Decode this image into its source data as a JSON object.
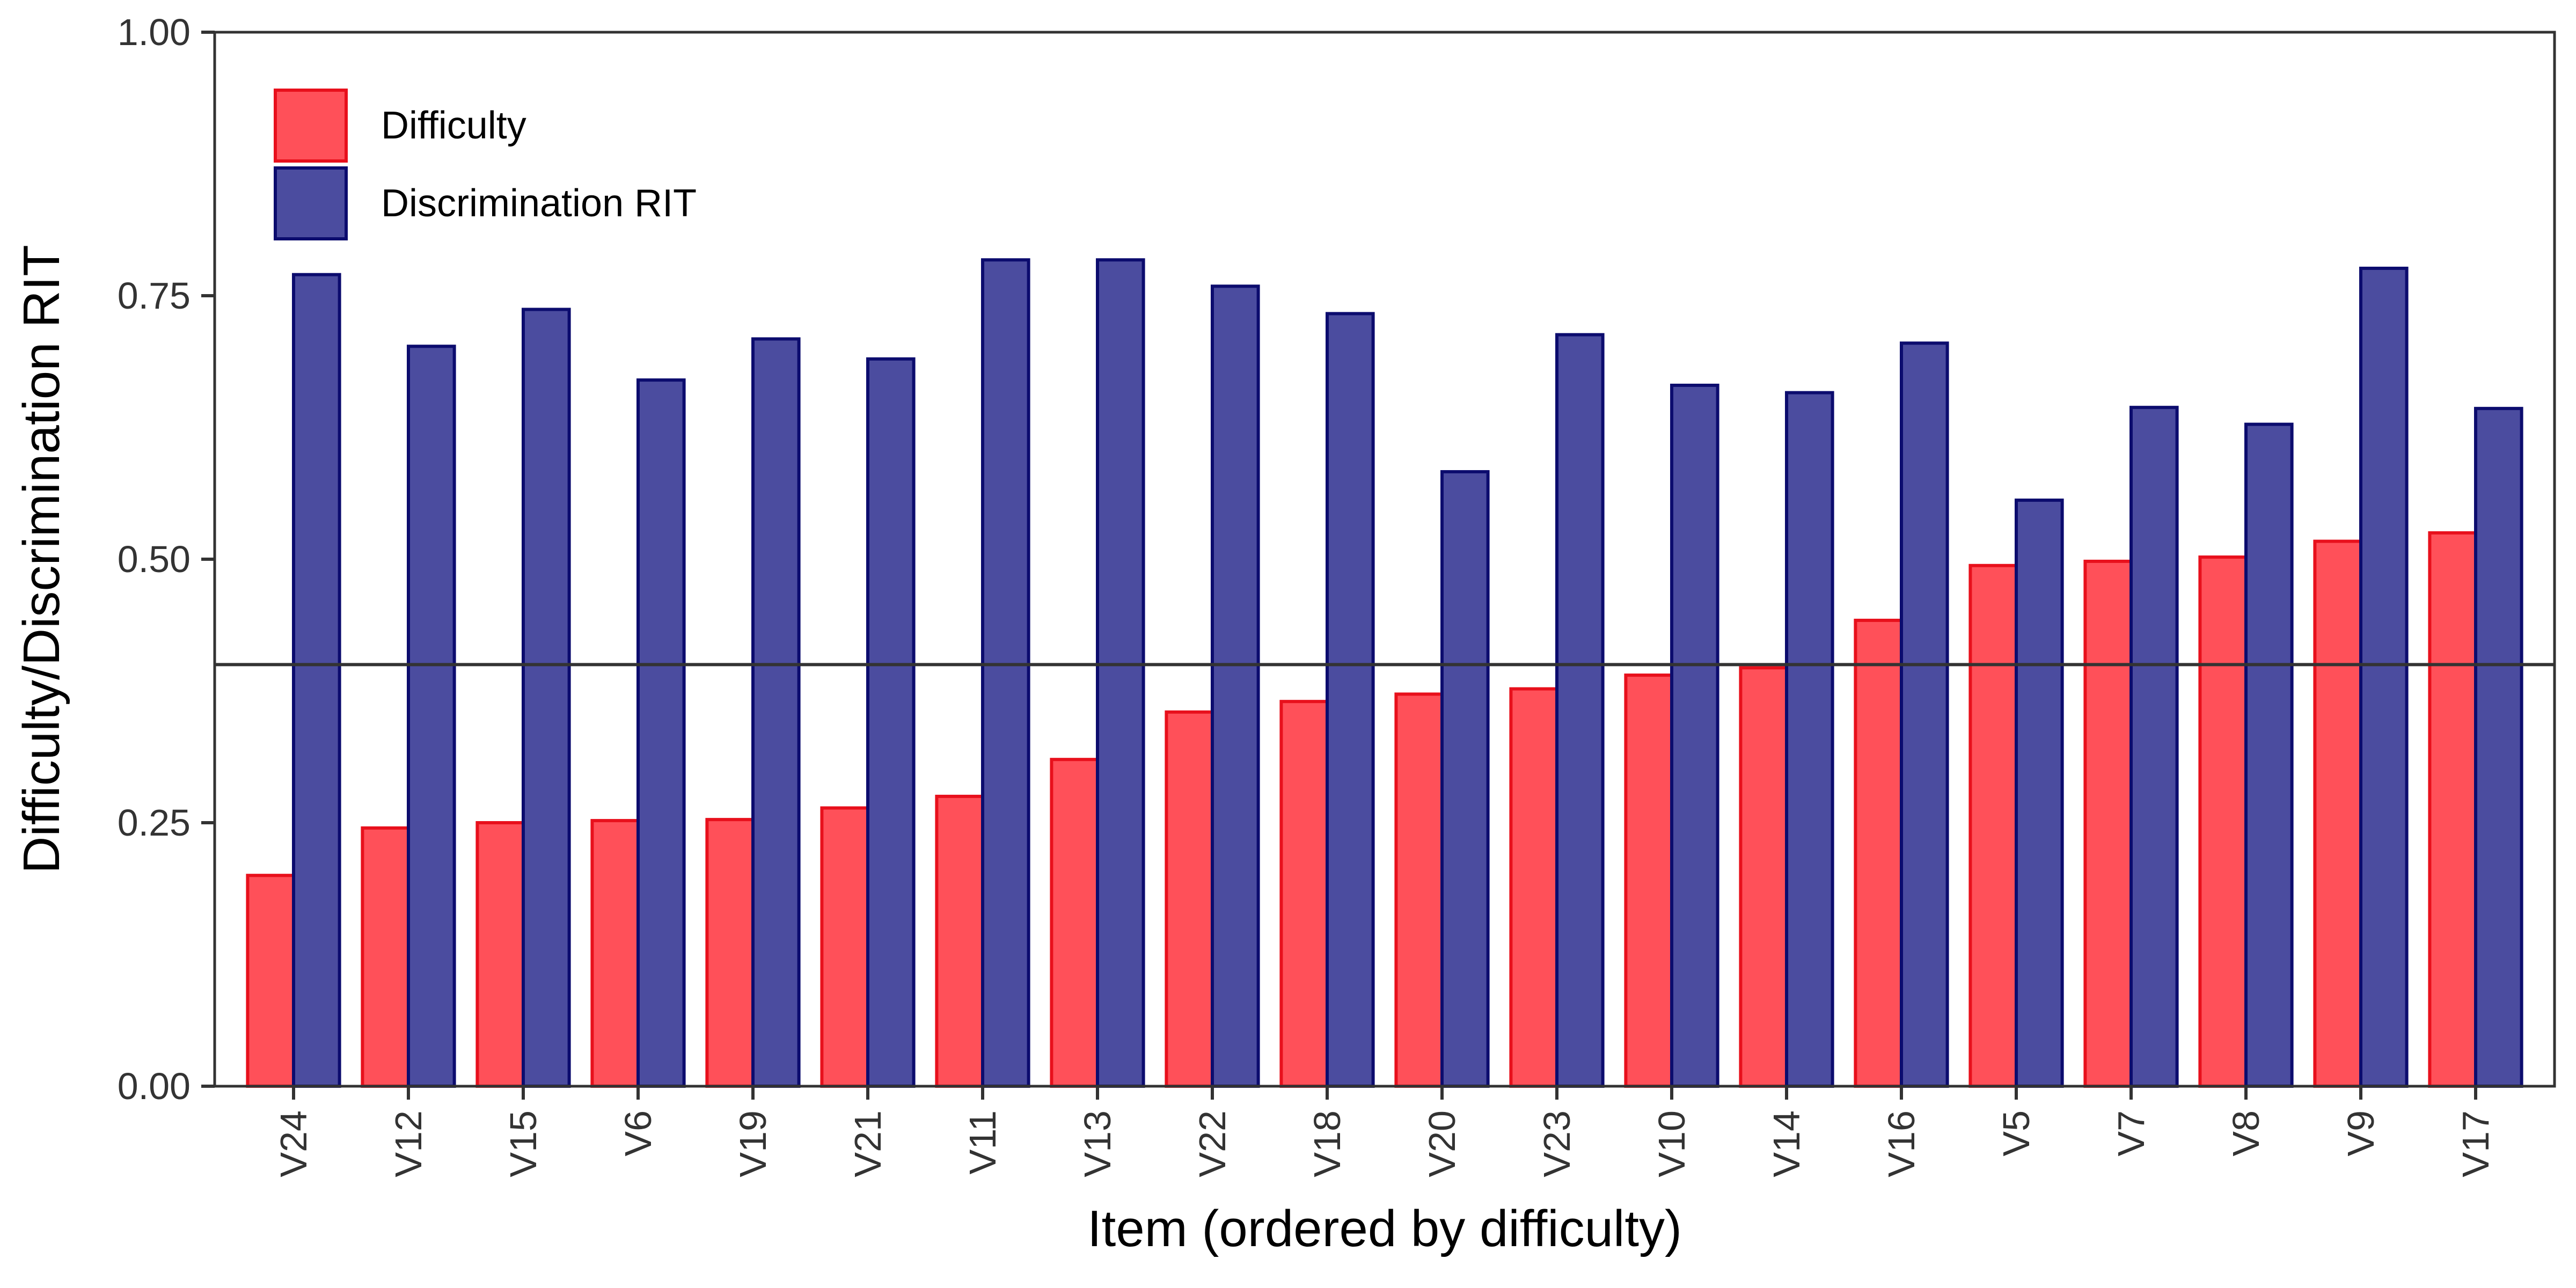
{
  "chart_data": {
    "type": "bar",
    "xlabel": "Item (ordered by difficulty)",
    "ylabel": "Difficulty/Discrimination RIT",
    "ylim": [
      0,
      1
    ],
    "yticks": [
      0,
      0.25,
      0.5,
      0.75,
      1
    ],
    "ytick_labels": [
      "0.00",
      "0.25",
      "0.50",
      "0.75",
      "1.00"
    ],
    "categories": [
      "V24",
      "V12",
      "V15",
      "V6",
      "V19",
      "V21",
      "V11",
      "V13",
      "V22",
      "V18",
      "V20",
      "V23",
      "V10",
      "V14",
      "V16",
      "V5",
      "V7",
      "V8",
      "V9",
      "V17"
    ],
    "series": [
      {
        "name": "Difficulty",
        "color": "#FF5059",
        "edge_color": "#E8101C",
        "values": [
          0.2,
          0.245,
          0.25,
          0.252,
          0.253,
          0.264,
          0.275,
          0.31,
          0.355,
          0.365,
          0.372,
          0.377,
          0.39,
          0.397,
          0.442,
          0.494,
          0.498,
          0.502,
          0.517,
          0.525
        ]
      },
      {
        "name": "Discrimination RIT",
        "color": "#4B4C9F",
        "edge_color": "#0C0C6E",
        "values": [
          0.77,
          0.702,
          0.737,
          0.67,
          0.709,
          0.69,
          0.784,
          0.784,
          0.759,
          0.733,
          0.583,
          0.713,
          0.665,
          0.658,
          0.705,
          0.556,
          0.644,
          0.628,
          0.776,
          0.643
        ]
      }
    ],
    "reference_line": {
      "y": 0.4,
      "color": "#333333"
    },
    "grid": false,
    "legend_position": "top-left"
  }
}
